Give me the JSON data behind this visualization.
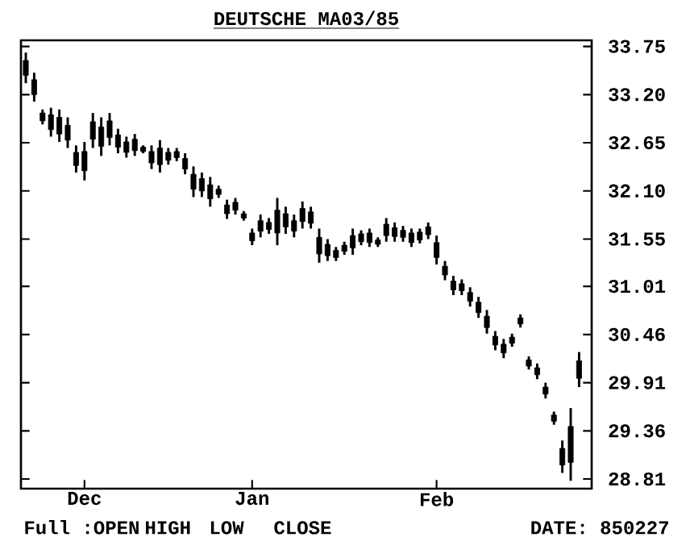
{
  "chart_data": {
    "type": "candlestick",
    "title": "DEUTSCHE MA03/85",
    "categories": [
      null,
      null,
      null,
      null,
      null,
      null,
      null,
      "Dec",
      null,
      null,
      null,
      null,
      null,
      null,
      null,
      null,
      null,
      null,
      null,
      null,
      null,
      null,
      null,
      null,
      null,
      null,
      null,
      "Jan",
      null,
      null,
      null,
      null,
      null,
      null,
      null,
      null,
      null,
      null,
      null,
      null,
      null,
      null,
      null,
      null,
      null,
      null,
      null,
      null,
      null,
      "Feb",
      null,
      null,
      null,
      null,
      null,
      null,
      null,
      null,
      null,
      null,
      null,
      null,
      null,
      null,
      null,
      null,
      null
    ],
    "ohlc": [
      [
        33.59,
        33.68,
        33.33,
        33.42
      ],
      [
        33.37,
        33.45,
        33.12,
        33.2
      ],
      [
        32.99,
        33.03,
        32.86,
        32.9
      ],
      [
        32.97,
        33.05,
        32.72,
        32.8
      ],
      [
        32.94,
        33.03,
        32.66,
        32.75
      ],
      [
        32.85,
        32.94,
        32.59,
        32.68
      ],
      [
        32.54,
        32.62,
        32.31,
        32.39
      ],
      [
        32.55,
        32.66,
        32.22,
        32.33
      ],
      [
        32.89,
        32.99,
        32.59,
        32.69
      ],
      [
        32.83,
        32.94,
        32.5,
        32.61
      ],
      [
        32.9,
        32.99,
        32.62,
        32.71
      ],
      [
        32.74,
        32.81,
        32.53,
        32.6
      ],
      [
        32.66,
        32.72,
        32.48,
        32.54
      ],
      [
        32.69,
        32.75,
        32.5,
        32.56
      ],
      [
        32.6,
        32.62,
        32.53,
        32.55
      ],
      [
        32.55,
        32.62,
        32.35,
        32.42
      ],
      [
        32.59,
        32.68,
        32.31,
        32.4
      ],
      [
        32.54,
        32.59,
        32.4,
        32.45
      ],
      [
        32.55,
        32.59,
        32.44,
        32.48
      ],
      [
        32.47,
        32.53,
        32.29,
        32.35
      ],
      [
        32.29,
        32.38,
        32.03,
        32.12
      ],
      [
        32.24,
        32.31,
        32.03,
        32.1
      ],
      [
        32.17,
        32.26,
        31.92,
        32.01
      ],
      [
        32.12,
        32.16,
        32.02,
        32.06
      ],
      [
        31.94,
        32.0,
        31.78,
        31.84
      ],
      [
        31.97,
        32.02,
        31.83,
        31.88
      ],
      [
        31.84,
        31.87,
        31.76,
        31.79
      ],
      [
        31.62,
        31.67,
        31.48,
        31.53
      ],
      [
        31.76,
        31.83,
        31.57,
        31.64
      ],
      [
        31.74,
        31.79,
        31.61,
        31.66
      ],
      [
        31.88,
        32.02,
        31.48,
        31.62
      ],
      [
        31.84,
        31.92,
        31.61,
        31.69
      ],
      [
        31.76,
        31.83,
        31.57,
        31.64
      ],
      [
        31.9,
        31.98,
        31.67,
        31.75
      ],
      [
        31.86,
        31.92,
        31.67,
        31.73
      ],
      [
        31.57,
        31.67,
        31.28,
        31.38
      ],
      [
        31.49,
        31.55,
        31.3,
        31.36
      ],
      [
        31.42,
        31.46,
        31.3,
        31.34
      ],
      [
        31.48,
        31.52,
        31.37,
        31.41
      ],
      [
        31.59,
        31.67,
        31.37,
        31.45
      ],
      [
        31.61,
        31.65,
        31.48,
        31.52
      ],
      [
        31.62,
        31.67,
        31.46,
        31.51
      ],
      [
        31.54,
        31.57,
        31.46,
        31.49
      ],
      [
        31.72,
        31.79,
        31.52,
        31.59
      ],
      [
        31.68,
        31.74,
        31.52,
        31.58
      ],
      [
        31.65,
        31.7,
        31.52,
        31.57
      ],
      [
        31.62,
        31.67,
        31.46,
        31.51
      ],
      [
        31.63,
        31.67,
        31.5,
        31.54
      ],
      [
        31.69,
        31.74,
        31.55,
        31.6
      ],
      [
        31.51,
        31.59,
        31.26,
        31.34
      ],
      [
        31.24,
        31.3,
        31.08,
        31.14
      ],
      [
        31.07,
        31.13,
        30.91,
        30.97
      ],
      [
        31.04,
        31.09,
        30.91,
        30.96
      ],
      [
        30.94,
        31.0,
        30.78,
        30.84
      ],
      [
        30.83,
        30.89,
        30.65,
        30.71
      ],
      [
        30.67,
        30.74,
        30.47,
        30.54
      ],
      [
        30.44,
        30.5,
        30.28,
        30.34
      ],
      [
        30.35,
        30.41,
        30.19,
        30.25
      ],
      [
        30.43,
        30.47,
        30.32,
        30.36
      ],
      [
        30.65,
        30.69,
        30.54,
        30.58
      ],
      [
        30.17,
        30.21,
        30.06,
        30.1
      ],
      [
        30.08,
        30.13,
        29.95,
        30.0
      ],
      [
        29.86,
        29.91,
        29.73,
        29.78
      ],
      [
        29.54,
        29.58,
        29.43,
        29.47
      ],
      [
        29.16,
        29.25,
        28.88,
        28.97
      ],
      [
        29.41,
        29.62,
        28.79,
        29.0
      ],
      [
        30.16,
        30.26,
        29.86,
        29.96
      ]
    ],
    "color": "#000000",
    "ylim": [
      28.7,
      33.82
    ],
    "yticks": [
      33.75,
      {
        "value": 33.2,
        "label": "33.20"
      },
      32.65,
      {
        "value": 32.1,
        "label": "32.10"
      },
      31.55,
      31.01,
      30.46,
      29.91,
      29.36,
      28.81
    ],
    "grid": false,
    "annotations": [
      "Full :OPEN",
      "HIGH",
      "LOW",
      "CLOSE",
      "DATE: 850227"
    ]
  }
}
